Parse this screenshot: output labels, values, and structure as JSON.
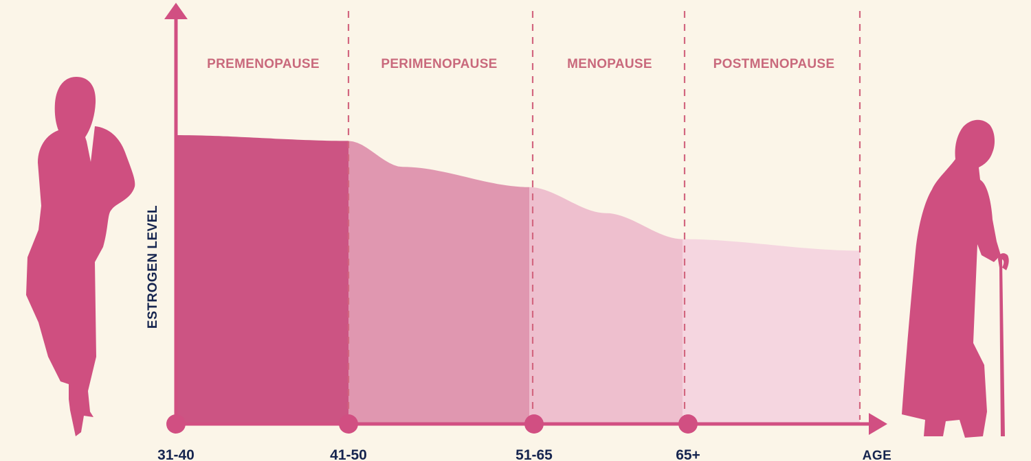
{
  "chart_data": {
    "type": "area",
    "ylabel": "ESTROGEN LEVEL",
    "xlabel": "AGE",
    "phases": [
      {
        "label": "PREMENOPAUSE",
        "range": "31-40",
        "fill": "#cc5483"
      },
      {
        "label": "PERIMENOPAUSE",
        "range": "41-50",
        "fill": "#e097b0"
      },
      {
        "label": "MENOPAUSE",
        "range": "51-65",
        "fill": "#eebfce"
      },
      {
        "label": "POSTMENOPAUSE",
        "range": "65+",
        "fill": "#f5d6e0"
      }
    ],
    "x_ticks": [
      "31-40",
      "41-50",
      "51-65",
      "65+"
    ],
    "estrogen_level_relative": {
      "x": [
        0,
        1,
        1.3,
        2,
        2.5,
        3,
        4
      ],
      "y": [
        1.0,
        0.98,
        0.89,
        0.82,
        0.73,
        0.64,
        0.6
      ]
    },
    "ylim": [
      0,
      1.05
    ],
    "grid": false,
    "legend": "none"
  },
  "colors": {
    "background": "#fbf5e8",
    "silhouette": "#cf4f80",
    "axis": "#d14f82",
    "divider": "#d2667f",
    "phase_label": "#c9697c",
    "axis_text": "#16254f"
  },
  "icons": {
    "left_figure": "standing-woman-silhouette-icon",
    "right_figure": "elderly-woman-with-cane-silhouette-icon"
  }
}
